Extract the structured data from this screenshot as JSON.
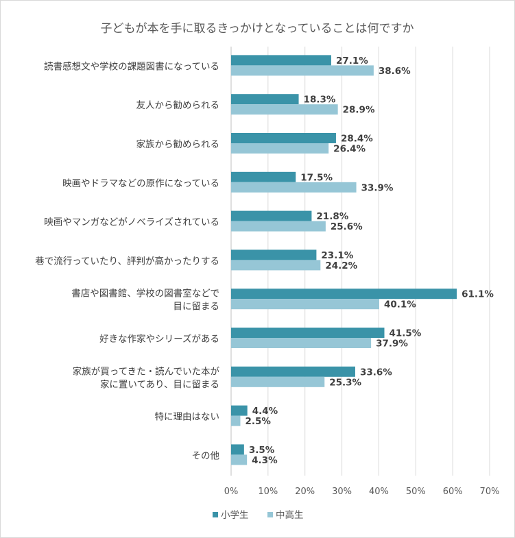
{
  "chart_data": {
    "type": "bar",
    "orientation": "horizontal",
    "title": "子どもが本を手に取るきっかけとなっていることは何ですか",
    "categories": [
      [
        "読書感想文や学校の課題図書になっている"
      ],
      [
        "友人から勧められる"
      ],
      [
        "家族から勧められる"
      ],
      [
        "映画やドラマなどの原作になっている"
      ],
      [
        "映画やマンガなどがノベライズされている"
      ],
      [
        "巷で流行っていたり、評判が高かったりする"
      ],
      [
        "書店や図書館、学校の図書室などで",
        "目に留まる"
      ],
      [
        "好きな作家やシリーズがある"
      ],
      [
        "家族が買ってきた・読んでいた本が",
        "家に置いてあり、目に留まる"
      ],
      [
        "特に理由はない"
      ],
      [
        "その他"
      ]
    ],
    "series": [
      {
        "name": "小学生",
        "color": "#3a93a8",
        "values": [
          27.1,
          18.3,
          28.4,
          17.5,
          21.8,
          23.1,
          61.1,
          41.5,
          33.6,
          4.4,
          3.5
        ],
        "labels": [
          "27.1%",
          "18.3%",
          "28.4%",
          "17.5%",
          "21.8%",
          "23.1%",
          "61.1%",
          "41.5%",
          "33.6%",
          "4.4%",
          "3.5%"
        ]
      },
      {
        "name": "中高生",
        "color": "#96c6d6",
        "values": [
          38.6,
          28.9,
          26.4,
          33.9,
          25.6,
          24.2,
          40.1,
          37.9,
          25.3,
          2.5,
          4.3
        ],
        "labels": [
          "38.6%",
          "28.9%",
          "26.4%",
          "33.9%",
          "25.6%",
          "24.2%",
          "40.1%",
          "37.9%",
          "25.3%",
          "2.5%",
          "4.3%"
        ]
      }
    ],
    "xlim": [
      0,
      70
    ],
    "xticks": [
      "0%",
      "10%",
      "20%",
      "30%",
      "40%",
      "50%",
      "60%",
      "70%"
    ],
    "grid": true,
    "legend_position": "bottom",
    "gridline_color": "#d9d9d9"
  }
}
